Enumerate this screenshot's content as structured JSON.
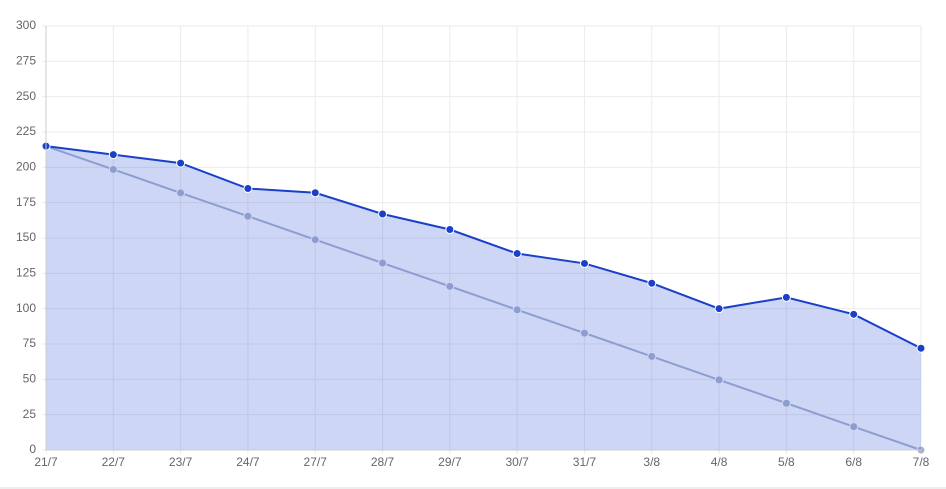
{
  "chart_data": {
    "type": "line",
    "categories": [
      "21/7",
      "22/7",
      "23/7",
      "24/7",
      "27/7",
      "28/7",
      "29/7",
      "30/7",
      "31/7",
      "3/8",
      "4/8",
      "5/8",
      "6/8",
      "7/8"
    ],
    "series": [
      {
        "color": "#1a3fc8",
        "fill": "rgba(60,100,215,0.26)",
        "values": [
          215,
          209,
          203,
          185,
          182,
          167,
          156,
          139,
          132,
          118,
          100,
          108,
          96,
          72
        ]
      },
      {
        "color": "#a9b1cd",
        "values": [
          215,
          198.5,
          181.9,
          165.4,
          148.8,
          132.3,
          115.8,
          99.2,
          82.7,
          66.2,
          49.6,
          33.1,
          16.5,
          0
        ]
      }
    ],
    "ylim": [
      0,
      300
    ],
    "yticks": [
      0,
      25,
      50,
      75,
      100,
      125,
      150,
      175,
      200,
      225,
      250,
      275,
      300
    ],
    "grid": true
  }
}
